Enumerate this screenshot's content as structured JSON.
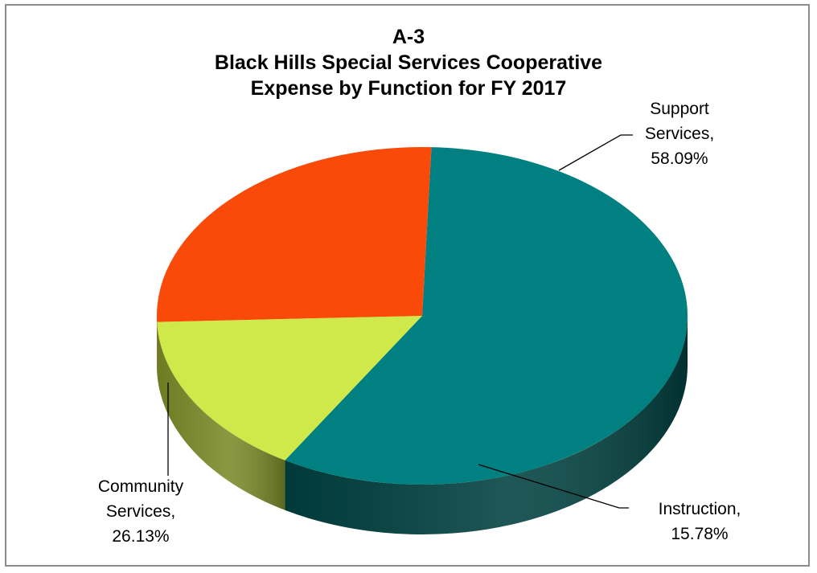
{
  "chart_data": {
    "type": "pie",
    "title": "A-3",
    "subtitle_lines": [
      "Black Hills Special Services Cooperative",
      "Expense by Function for FY 2017"
    ],
    "three_d": true,
    "legend": "none",
    "slices": [
      {
        "category": "Support Services",
        "value": 58.09,
        "label_lines": [
          "Support",
          "Services,",
          "58.09%"
        ],
        "color": "#008080",
        "side_color": "#00403f"
      },
      {
        "category": "Instruction",
        "value": 15.78,
        "label_lines": [
          "Instruction,",
          "15.78%"
        ],
        "color": "#cfe84a",
        "side_color": "#7a8a28"
      },
      {
        "category": "Community Services",
        "value": 26.13,
        "label_lines": [
          "Community",
          "Services,",
          "26.13%"
        ],
        "color": "#f94a0a",
        "side_color": "#b83a10"
      }
    ]
  }
}
